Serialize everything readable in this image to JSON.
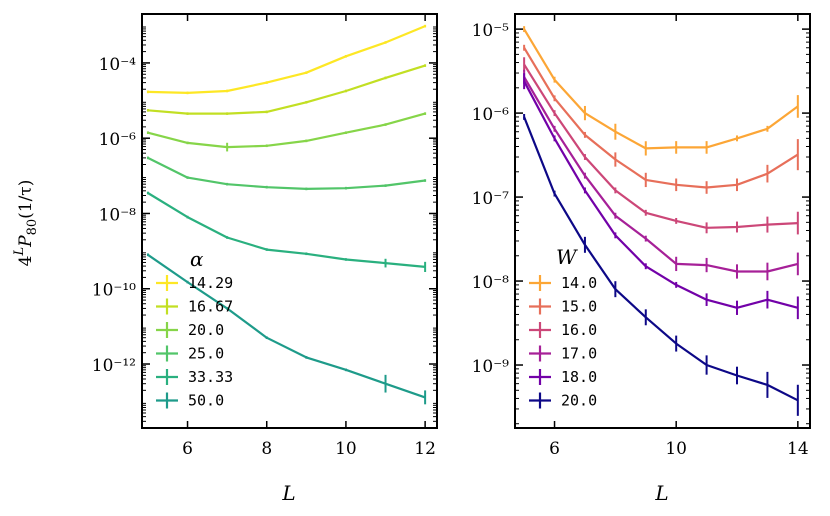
{
  "chart_data": [
    {
      "type": "line",
      "yscale": "log",
      "ylabel_parts": {
        "base": "4",
        "sup": "L",
        "p": "P",
        "sub": "80",
        "rest": "(1/τ)"
      },
      "xlabel": "L",
      "xlim": [
        4.85,
        12.3
      ],
      "ylim_exp": [
        -13.7,
        -2.7
      ],
      "xticks": [
        6,
        8,
        10,
        12
      ],
      "yticks_exp": [
        -12,
        -10,
        -8,
        -6,
        -4
      ],
      "legend_title": "α",
      "series": [
        {
          "name": "14.29",
          "color": "#fde725",
          "x": [
            5,
            6,
            7,
            8,
            9,
            10,
            11,
            12
          ],
          "y": [
            1.7e-05,
            1.6e-05,
            1.8e-05,
            3e-05,
            5.5e-05,
            0.00015,
            0.00035,
            0.00095
          ],
          "err": [
            0,
            0,
            0,
            0,
            0,
            0,
            0,
            0
          ]
        },
        {
          "name": "16.67",
          "color": "#c2df23",
          "x": [
            5,
            6,
            7,
            8,
            9,
            10,
            11,
            12
          ],
          "y": [
            5.5e-06,
            4.5e-06,
            4.5e-06,
            5e-06,
            9e-06,
            1.8e-05,
            4e-05,
            8.5e-05
          ],
          "err": [
            0,
            0,
            0,
            0,
            0,
            0,
            0,
            0
          ]
        },
        {
          "name": "20.0",
          "color": "#86d549",
          "x": [
            5,
            6,
            7,
            8,
            9,
            10,
            11,
            12
          ],
          "y": [
            1.4e-06,
            7.5e-07,
            5.8e-07,
            6.3e-07,
            8.5e-07,
            1.4e-06,
            2.3e-06,
            4.5e-06
          ],
          "err": [
            0,
            0,
            0.08,
            0,
            0,
            0,
            0,
            0
          ]
        },
        {
          "name": "25.0",
          "color": "#52c569",
          "x": [
            5,
            6,
            7,
            8,
            9,
            10,
            11,
            12
          ],
          "y": [
            3e-07,
            9e-08,
            6e-08,
            5e-08,
            4.5e-08,
            4.7e-08,
            5.5e-08,
            7.5e-08
          ],
          "err": [
            0,
            0,
            0,
            0,
            0,
            0,
            0,
            0
          ]
        },
        {
          "name": "33.33",
          "color": "#2ab07f",
          "x": [
            5,
            6,
            7,
            8,
            9,
            10,
            11,
            12
          ],
          "y": [
            3.5e-08,
            8e-09,
            2.3e-09,
            1.1e-09,
            8.5e-10,
            6e-10,
            4.8e-10,
            3.8e-10
          ],
          "err": [
            0,
            0,
            0,
            0,
            0,
            0,
            0.08,
            0.1
          ]
        },
        {
          "name": "50.0",
          "color": "#1e9b8a",
          "x": [
            5,
            6,
            7,
            8,
            9,
            10,
            11,
            12
          ],
          "y": [
            8e-10,
            1.5e-10,
            3e-11,
            5e-12,
            1.5e-12,
            7e-13,
            3e-13,
            1.3e-13
          ],
          "err": [
            0,
            0,
            0,
            0,
            0,
            0,
            0.2,
            0.15
          ]
        }
      ]
    },
    {
      "type": "line",
      "yscale": "log",
      "ylabel": "",
      "xlabel": "L",
      "xlim": [
        4.7,
        14.4
      ],
      "ylim_exp": [
        -9.75,
        -4.82
      ],
      "xticks": [
        6,
        10,
        14
      ],
      "yticks_exp": [
        -9,
        -8,
        -7,
        -6,
        -5
      ],
      "legend_title": "W",
      "series": [
        {
          "name": "14.0",
          "color": "#fca636",
          "x": [
            5,
            6,
            7,
            8,
            9,
            10,
            11,
            12,
            13,
            14
          ],
          "y": [
            1e-05,
            2.5e-06,
            1e-06,
            6e-07,
            3.8e-07,
            3.9e-07,
            3.9e-07,
            5e-07,
            6.5e-07,
            1.2e-06
          ],
          "err": [
            0,
            0,
            0.05,
            0.06,
            0.05,
            0.04,
            0.04,
            0,
            0,
            0.1
          ]
        },
        {
          "name": "15.0",
          "color": "#e76f5a",
          "x": [
            5,
            6,
            7,
            8,
            9,
            10,
            11,
            12,
            13,
            14
          ],
          "y": [
            6e-06,
            1.5e-06,
            5.5e-07,
            2.8e-07,
            1.6e-07,
            1.4e-07,
            1.3e-07,
            1.4e-07,
            1.9e-07,
            3.2e-07
          ],
          "err": [
            0,
            0,
            0,
            0.05,
            0.05,
            0.04,
            0.04,
            0.04,
            0.07,
            0.15
          ]
        },
        {
          "name": "16.0",
          "color": "#cc4778",
          "x": [
            5,
            6,
            7,
            8,
            9,
            10,
            11,
            12,
            13,
            14
          ],
          "y": [
            3.8e-06,
            1e-06,
            3e-07,
            1.2e-07,
            6.5e-08,
            5.2e-08,
            4.3e-08,
            4.4e-08,
            4.7e-08,
            4.9e-08
          ],
          "err": [
            0.05,
            0,
            0,
            0,
            0,
            0,
            0.03,
            0.03,
            0.06,
            0.1
          ]
        },
        {
          "name": "17.0",
          "color": "#a62098",
          "x": [
            5,
            6,
            7,
            8,
            9,
            10,
            11,
            12,
            13,
            14
          ],
          "y": [
            2.7e-06,
            6.5e-07,
            1.8e-07,
            6e-08,
            3.2e-08,
            1.6e-08,
            1.55e-08,
            1.3e-08,
            1.3e-08,
            1.6e-08
          ],
          "err": [
            0.05,
            0,
            0,
            0,
            0,
            0.05,
            0.05,
            0.05,
            0.07,
            0.1
          ]
        },
        {
          "name": "18.0",
          "color": "#7201a8",
          "x": [
            5,
            6,
            7,
            8,
            9,
            10,
            11,
            12,
            13,
            14
          ],
          "y": [
            2.4e-06,
            5e-07,
            1.2e-07,
            3.5e-08,
            1.5e-08,
            9e-09,
            6e-09,
            4.8e-09,
            6e-09,
            4.8e-09
          ],
          "err": [
            0.06,
            0,
            0,
            0,
            0,
            0,
            0.04,
            0.05,
            0.07,
            0.1
          ]
        },
        {
          "name": "20.0",
          "color": "#0d0887",
          "x": [
            5,
            6,
            7,
            8,
            9,
            10,
            11,
            12,
            13,
            14
          ],
          "y": [
            9e-07,
            1.1e-07,
            2.7e-08,
            8e-09,
            3.7e-09,
            1.8e-09,
            1e-09,
            7.5e-10,
            5.8e-10,
            3.8e-10
          ],
          "err": [
            0,
            0,
            0.06,
            0.06,
            0.06,
            0.06,
            0.08,
            0.07,
            0.12,
            0.15
          ]
        }
      ]
    }
  ]
}
